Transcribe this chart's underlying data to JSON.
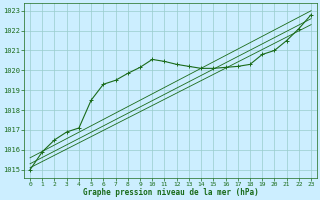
{
  "title": "Graphe pression niveau de la mer (hPa)",
  "bg_color": "#cceeff",
  "grid_color": "#99cccc",
  "line_color": "#1a6b1a",
  "text_color": "#1a6b1a",
  "ylim": [
    1014.6,
    1023.4
  ],
  "xlim": [
    -0.5,
    23.5
  ],
  "yticks": [
    1015,
    1016,
    1017,
    1018,
    1019,
    1020,
    1021,
    1022,
    1023
  ],
  "xticks": [
    0,
    1,
    2,
    3,
    4,
    5,
    6,
    7,
    8,
    9,
    10,
    11,
    12,
    13,
    14,
    15,
    16,
    17,
    18,
    19,
    20,
    21,
    22,
    23
  ],
  "main_x": [
    0,
    1,
    2,
    3,
    4,
    5,
    6,
    7,
    8,
    9,
    10,
    11,
    12,
    13,
    14,
    15,
    16,
    17,
    18,
    19,
    20,
    21,
    22,
    23
  ],
  "main_y": [
    1015.0,
    1015.9,
    1016.5,
    1016.9,
    1017.1,
    1018.5,
    1019.3,
    1019.5,
    1019.85,
    1020.15,
    1020.55,
    1020.45,
    1020.3,
    1020.2,
    1020.1,
    1020.1,
    1020.15,
    1020.2,
    1020.3,
    1020.8,
    1021.0,
    1021.5,
    1022.1,
    1022.8
  ],
  "trend_lines": [
    {
      "x0": 0,
      "y0": 1015.1,
      "x1": 23,
      "y1": 1022.3
    },
    {
      "x0": 0,
      "y0": 1015.3,
      "x1": 23,
      "y1": 1022.6
    },
    {
      "x0": 0,
      "y0": 1015.6,
      "x1": 23,
      "y1": 1023.0
    }
  ]
}
